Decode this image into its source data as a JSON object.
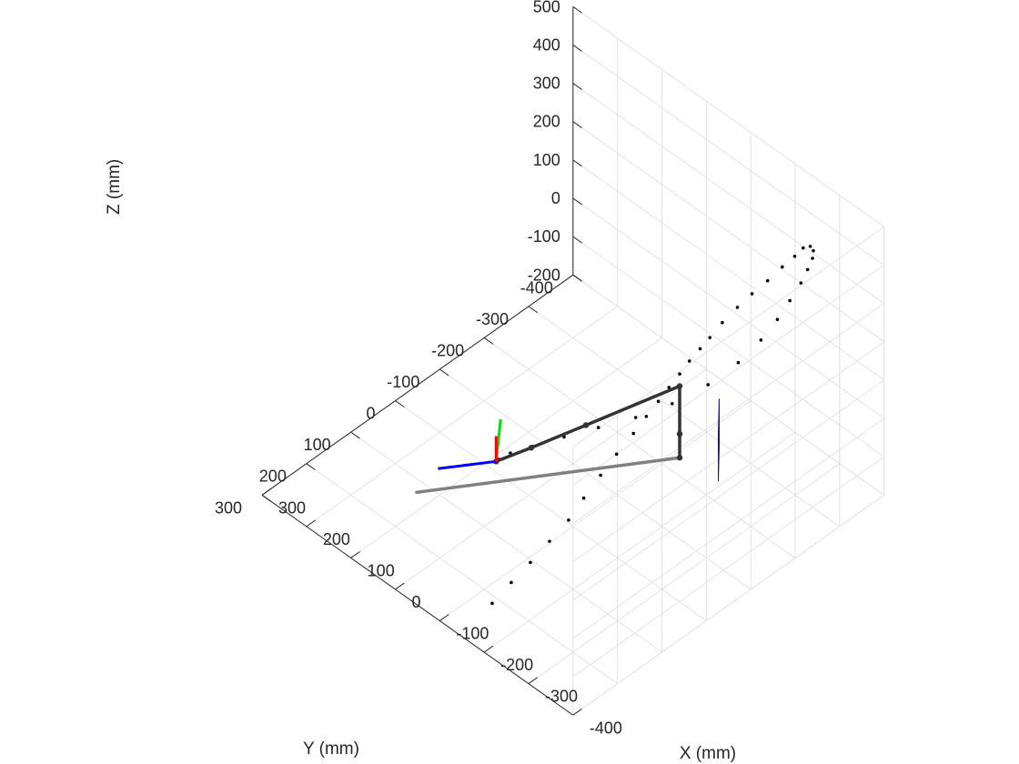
{
  "chart_data": {
    "type": "scatter",
    "title": "",
    "xlabel": "X (mm)",
    "ylabel": "Y (mm)",
    "zlabel": "Z (mm)",
    "xlim": [
      -400,
      300
    ],
    "ylim": [
      -400,
      300
    ],
    "zlim": [
      -200,
      500
    ],
    "grid": true,
    "x_ticks": [
      "-400",
      "-300",
      "-200",
      "-100",
      "0",
      "100",
      "200",
      "300"
    ],
    "y_ticks": [
      "-400",
      "-300",
      "-200",
      "-100",
      "0",
      "100",
      "200",
      "300"
    ],
    "z_ticks": [
      "500",
      "400",
      "300",
      "200",
      "100",
      "0",
      "-100",
      "-200"
    ],
    "colors": {
      "grid": "#e3e3e3",
      "axis": "#262626",
      "points": "#000000",
      "arm": "#333333",
      "shadow": "#808080",
      "panel": "#3f3ff5",
      "frame_x": "#ff0000",
      "frame_y": "#00dd00",
      "frame_z": "#0000ff"
    },
    "trajectory_points": [
      [
        -236,
        318,
        -28
      ],
      [
        -236,
        275,
        -9
      ],
      [
        -236,
        232,
        8
      ],
      [
        -236,
        189,
        28
      ],
      [
        -236,
        146,
        48
      ],
      [
        -234,
        110,
        74
      ],
      [
        -233,
        71,
        101
      ],
      [
        -232,
        34,
        125
      ],
      [
        -234,
        -2,
        151
      ],
      [
        -239,
        -26,
        180
      ],
      [
        -242,
        -50,
        202
      ],
      [
        -249,
        -67,
        230
      ],
      [
        -259,
        -81,
        262
      ],
      [
        -272,
        -90,
        299
      ],
      [
        -287,
        -99,
        336
      ],
      [
        -301,
        -107,
        370
      ],
      [
        -315,
        -121,
        409
      ],
      [
        -329,
        -141,
        444
      ],
      [
        -341,
        -162,
        472
      ],
      [
        -350,
        -188,
        492
      ],
      [
        -353,
        -218,
        506
      ],
      [
        -355,
        -244,
        514
      ],
      [
        -355,
        -263,
        520
      ],
      [
        -361,
        -273,
        521
      ],
      [
        -369,
        -272,
        517
      ],
      [
        -377,
        -262,
        512
      ],
      [
        -384,
        -244,
        503
      ],
      [
        -388,
        -225,
        487
      ],
      [
        -389,
        -199,
        463
      ],
      [
        -389,
        -171,
        437
      ],
      [
        -382,
        -141,
        402
      ],
      [
        -368,
        -104,
        362
      ],
      [
        -344,
        -60,
        321
      ],
      [
        -313,
        -10,
        287
      ],
      [
        -280,
        39,
        264
      ],
      [
        -243,
        86,
        246
      ],
      [
        -208,
        128,
        227
      ],
      [
        -174,
        165,
        205
      ],
      [
        -148,
        189,
        186
      ],
      [
        -134,
        201,
        168
      ],
      [
        -127,
        200,
        156
      ]
    ],
    "arm_links": [
      [
        [
          -127,
          200,
          156
        ],
        [
          -160,
          154,
          181
        ],
        [
          -210,
          81,
          221
        ],
        [
          -296,
          -44,
          291
        ]
      ],
      [
        [
          -296,
          -44,
          291
        ],
        [
          -296,
          -44,
          104
        ]
      ]
    ],
    "arm_joints": [
      [
        -127,
        200,
        156
      ],
      [
        -160,
        154,
        181
      ],
      [
        -210,
        81,
        221
      ],
      [
        -296,
        -44,
        291
      ],
      [
        -296,
        -44,
        166
      ],
      [
        -296,
        -44,
        104
      ]
    ],
    "shadow_link": [
      [
        -296,
        -44,
        104
      ],
      [
        -55,
        307,
        104
      ]
    ],
    "panel": [
      [
        -322,
        -107,
        104
      ],
      [
        -322,
        -107,
        228
      ],
      [
        -377,
        -50,
        228
      ],
      [
        -377,
        -50,
        104
      ]
    ],
    "end_frame": {
      "origin": [
        -127,
        200,
        156
      ],
      "x_axis_end": [
        -73,
        277,
        156
      ],
      "y_axis_end": [
        -65,
        128,
        156
      ],
      "z_axis_end": [
        -127,
        200,
        222
      ]
    }
  }
}
